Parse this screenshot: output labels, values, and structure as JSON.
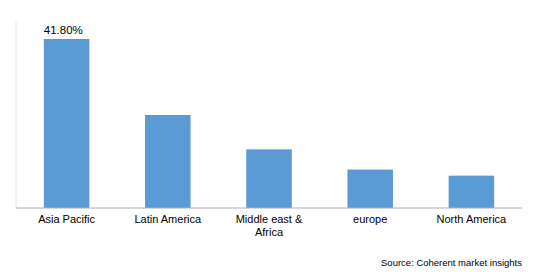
{
  "chart_data": {
    "type": "bar",
    "categories": [
      "Asia Pacific",
      "Latin America",
      "Middle east &\nAfrica",
      "europe",
      "North America"
    ],
    "values": [
      41.8,
      23.0,
      14.5,
      9.5,
      8.0
    ],
    "color": "#5B9BD5",
    "ylim": [
      0,
      46
    ],
    "annotation": "41.80%",
    "source": "Source: Coherent market insights",
    "tick_labels": "x",
    "grid": false
  }
}
